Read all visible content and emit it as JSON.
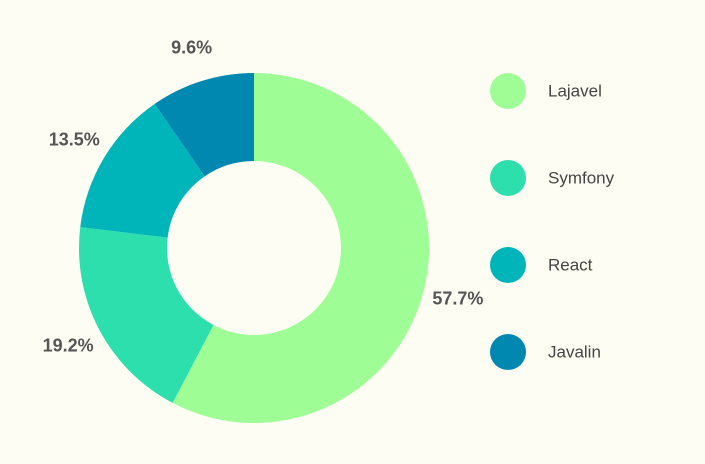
{
  "chart_data": {
    "type": "pie",
    "donut": true,
    "title": "",
    "categories": [
      "Lajavel",
      "Symfony",
      "React",
      "Javalin"
    ],
    "values": [
      57.7,
      19.2,
      13.5,
      9.6
    ],
    "value_labels": [
      "57.7%",
      "19.2%",
      "13.5%",
      "9.6%"
    ],
    "colors": [
      "#9efd94",
      "#2cdfad",
      "#00b5b9",
      "#0088b1"
    ],
    "legend": "right"
  }
}
